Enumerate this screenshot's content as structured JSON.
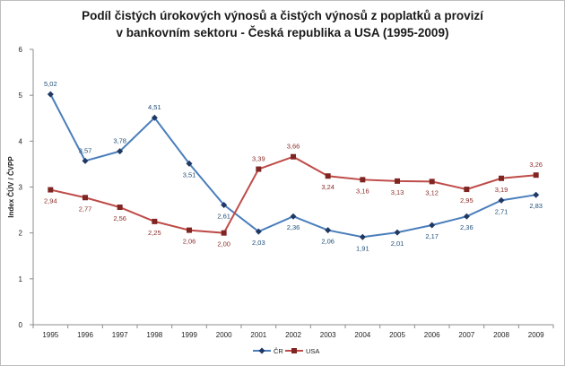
{
  "chart_data": {
    "type": "line",
    "title_line1": "Podíl čistých úrokových výnosů a čistých výnosů z poplatků a provizí",
    "title_line2": "v bankovním sektoru - Česká republika a USA (1995-2009)",
    "xlabel": "",
    "ylabel": "Index ČÚV / ČVPP",
    "x": [
      "1995",
      "1996",
      "1997",
      "1998",
      "1999",
      "2000",
      "2001",
      "2002",
      "2003",
      "2004",
      "2005",
      "2006",
      "2007",
      "2008",
      "2009"
    ],
    "ylim": [
      0,
      6
    ],
    "yticks": [
      "0",
      "1",
      "2",
      "3",
      "4",
      "5",
      "6"
    ],
    "grid": false,
    "legend_position": "bottom",
    "series": [
      {
        "name": "ČR",
        "color": "#4a7ebb",
        "marker": "diamond",
        "values": [
          5.02,
          3.57,
          3.78,
          4.51,
          3.51,
          2.61,
          2.03,
          2.36,
          2.06,
          1.91,
          2.01,
          2.17,
          2.36,
          2.71,
          2.83
        ],
        "labels": [
          "5,02",
          "3,57",
          "3,78",
          "4,51",
          "3,51",
          "2,61",
          "2,03",
          "2,36",
          "2,06",
          "1,91",
          "2,01",
          "2,17",
          "2,36",
          "2,71",
          "2,83"
        ],
        "label_color": "#1f4e79"
      },
      {
        "name": "USA",
        "color": "#be4b48",
        "marker": "square",
        "values": [
          2.94,
          2.77,
          2.56,
          2.25,
          2.06,
          2.0,
          3.39,
          3.66,
          3.24,
          3.16,
          3.13,
          3.12,
          2.95,
          3.19,
          3.26
        ],
        "labels": [
          "2,94",
          "2,77",
          "2,56",
          "2,25",
          "2,06",
          "2,00",
          "3,39",
          "3,66",
          "3,24",
          "3,16",
          "3,13",
          "3,12",
          "2,95",
          "3,19",
          "3,26"
        ],
        "label_color": "#8b2d2a"
      }
    ]
  }
}
